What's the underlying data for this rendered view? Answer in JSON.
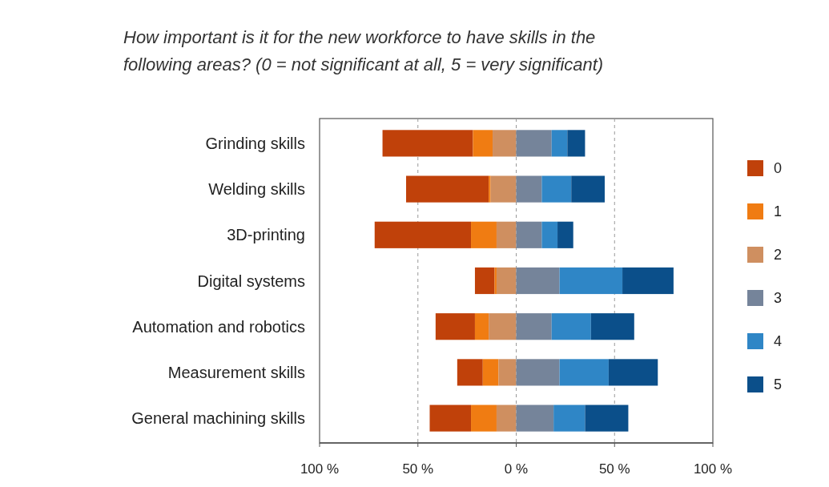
{
  "chart_data": {
    "type": "bar",
    "orientation": "horizontal",
    "title": "How important is it for the new workforce to have skills in the following areas? (0 = not significant at all, 5 = very significant)",
    "categories": [
      "Grinding skills",
      "Welding skills",
      "3D-printing",
      "Digital systems",
      "Automation and robotics",
      "Measurement skills",
      "General machining skills"
    ],
    "series": [
      {
        "name": "0",
        "color": "#c0410a",
        "values": [
          -46,
          -42,
          -49,
          -10,
          -20,
          -13,
          -21
        ],
        "base": [
          -22,
          -14,
          -23,
          -11,
          -21,
          -17,
          -23
        ]
      },
      {
        "name": "1",
        "color": "#f07c12",
        "values": [
          -10,
          -1,
          -13,
          -1,
          -7,
          -8,
          -13
        ],
        "base": [
          -12,
          -13,
          -10,
          -10,
          -14,
          -9,
          -10
        ]
      },
      {
        "name": "2",
        "color": "#cf8f60",
        "values": [
          -12,
          -13,
          -10,
          -10,
          -14,
          -9,
          -10
        ],
        "base": [
          0,
          0,
          0,
          0,
          0,
          0,
          0
        ]
      },
      {
        "name": "3",
        "color": "#75849a",
        "values": [
          18,
          13,
          13,
          22,
          18,
          22,
          19
        ],
        "base": [
          0,
          0,
          0,
          0,
          0,
          0,
          0
        ]
      },
      {
        "name": "4",
        "color": "#2f86c6",
        "values": [
          8,
          15,
          8,
          32,
          20,
          25,
          16
        ],
        "base": [
          18,
          13,
          13,
          22,
          18,
          22,
          19
        ]
      },
      {
        "name": "5",
        "color": "#0b4f8a",
        "values": [
          9,
          17,
          8,
          26,
          22,
          25,
          22
        ],
        "base": [
          26,
          28,
          21,
          54,
          38,
          47,
          35
        ]
      }
    ],
    "xlim": [
      -100,
      100
    ],
    "xticks": [
      {
        "value": -100,
        "label": "100 %"
      },
      {
        "value": -50,
        "label": "50 %"
      },
      {
        "value": 0,
        "label": "0 %"
      },
      {
        "value": 50,
        "label": "50 %"
      },
      {
        "value": 100,
        "label": "100 %"
      }
    ],
    "grid": "x",
    "legend": "right"
  }
}
